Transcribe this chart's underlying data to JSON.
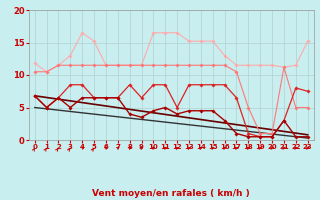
{
  "background_color": "#c8eef0",
  "grid_color": "#b0d0d0",
  "xlabel": "Vent moyen/en rafales ( km/h )",
  "xlabel_color": "#cc0000",
  "xlabel_fontsize": 6.5,
  "xtick_color": "#cc0000",
  "ytick_color": "#cc0000",
  "ytick_fontsize": 6,
  "xtick_fontsize": 5,
  "xlim_min": -0.5,
  "xlim_max": 23.5,
  "ylim_min": 0,
  "ylim_max": 20,
  "yticks": [
    0,
    5,
    10,
    15,
    20
  ],
  "xticks": [
    0,
    1,
    2,
    3,
    4,
    5,
    6,
    7,
    8,
    9,
    10,
    11,
    12,
    13,
    14,
    15,
    16,
    17,
    18,
    19,
    20,
    21,
    22,
    23
  ],
  "series": [
    {
      "x": [
        0,
        1,
        2,
        3,
        4,
        5,
        6,
        7,
        8,
        9,
        10,
        11,
        12,
        13,
        14,
        15,
        16,
        17,
        18,
        19,
        20,
        21,
        22,
        23
      ],
      "y": [
        11.8,
        10.5,
        11.5,
        13.0,
        16.5,
        15.2,
        11.5,
        11.5,
        11.5,
        11.5,
        16.5,
        16.5,
        16.5,
        15.2,
        15.2,
        15.2,
        13.0,
        11.5,
        11.5,
        11.5,
        11.5,
        11.2,
        11.5,
        15.2
      ],
      "color": "#ffaaaa",
      "linewidth": 0.8,
      "marker": "D",
      "markersize": 1.8
    },
    {
      "x": [
        0,
        1,
        2,
        3,
        4,
        5,
        6,
        7,
        8,
        9,
        10,
        11,
        12,
        13,
        14,
        15,
        16,
        17,
        18,
        19,
        20,
        21,
        22,
        23
      ],
      "y": [
        10.5,
        10.5,
        11.5,
        11.5,
        11.5,
        11.5,
        11.5,
        11.5,
        11.5,
        11.5,
        11.5,
        11.5,
        11.5,
        11.5,
        11.5,
        11.5,
        11.5,
        10.5,
        5.0,
        1.0,
        1.0,
        11.2,
        5.0,
        5.0
      ],
      "color": "#ff7777",
      "linewidth": 0.8,
      "marker": "D",
      "markersize": 1.8
    },
    {
      "x": [
        0,
        1,
        2,
        3,
        4,
        5,
        6,
        7,
        8,
        9,
        10,
        11,
        12,
        13,
        14,
        15,
        16,
        17,
        18,
        19,
        20,
        21,
        22,
        23
      ],
      "y": [
        6.8,
        5.0,
        6.5,
        8.5,
        8.5,
        6.5,
        6.5,
        6.5,
        8.5,
        6.5,
        8.5,
        8.5,
        5.0,
        8.5,
        8.5,
        8.5,
        8.5,
        6.5,
        1.0,
        0.5,
        0.5,
        3.0,
        8.0,
        7.5
      ],
      "color": "#dd2222",
      "linewidth": 0.9,
      "marker": "D",
      "markersize": 1.8
    },
    {
      "x": [
        0,
        1,
        2,
        3,
        4,
        5,
        6,
        7,
        8,
        9,
        10,
        11,
        12,
        13,
        14,
        15,
        16,
        17,
        18,
        19,
        20,
        21,
        22,
        23
      ],
      "y": [
        6.8,
        5.0,
        6.5,
        5.0,
        6.5,
        6.5,
        6.5,
        6.5,
        4.0,
        3.5,
        4.5,
        5.0,
        4.0,
        4.5,
        4.5,
        4.5,
        3.0,
        1.0,
        0.5,
        0.5,
        0.5,
        3.0,
        0.5,
        0.5
      ],
      "color": "#aa0000",
      "linewidth": 1.0,
      "marker": "D",
      "markersize": 1.8
    },
    {
      "x": [
        0,
        23
      ],
      "y": [
        6.8,
        0.8
      ],
      "color": "#660000",
      "linewidth": 1.2,
      "marker": null,
      "markersize": 0
    },
    {
      "x": [
        0,
        23
      ],
      "y": [
        5.0,
        0.3
      ],
      "color": "#333333",
      "linewidth": 1.0,
      "marker": null,
      "markersize": 0
    }
  ],
  "divider_color": "#cc0000",
  "arrow_color": "#cc0000",
  "arrow_angles": [
    45,
    40,
    35,
    35,
    30,
    35,
    25,
    25,
    20,
    15,
    15,
    15,
    10,
    10,
    10,
    10,
    10,
    10,
    10,
    5,
    5,
    5,
    5,
    5
  ]
}
